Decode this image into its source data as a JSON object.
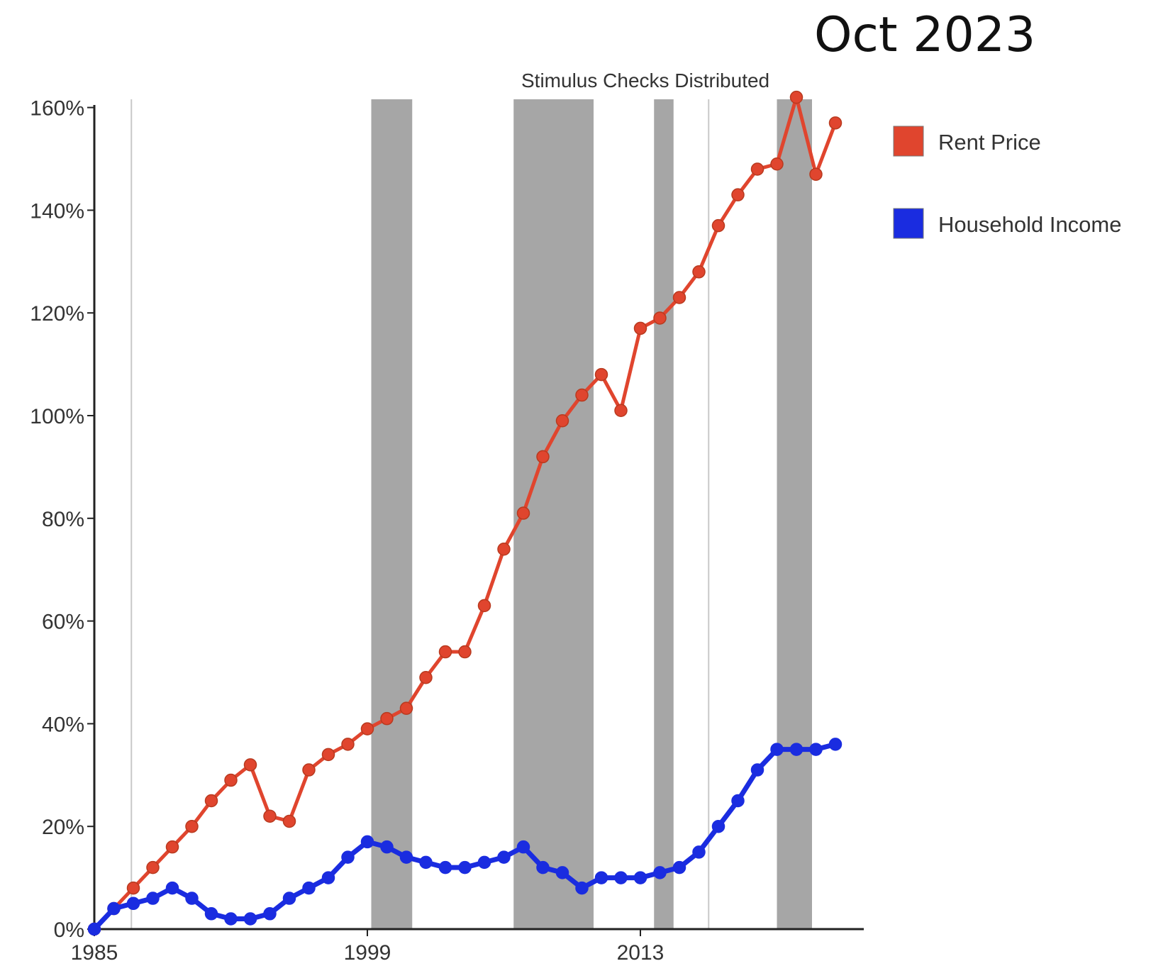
{
  "period_label": "Oct 2023",
  "annotation": "Stimulus Checks Distributed",
  "colors": {
    "rent": "#e0452e",
    "rent_stroke": "#b83a1f",
    "income": "#1a2ce0",
    "shade": "#a6a6a6",
    "thin_line": "#c8c8c8",
    "axis": "#222222"
  },
  "chart_data": {
    "type": "line",
    "title": "",
    "xlabel": "",
    "ylabel": "",
    "x_ticks": [
      "1985",
      "1999",
      "2013"
    ],
    "y_ticks": [
      "0%",
      "20%",
      "40%",
      "60%",
      "80%",
      "100%",
      "120%",
      "140%",
      "160%"
    ],
    "xlim": [
      1985,
      2024.5
    ],
    "ylim": [
      0,
      160
    ],
    "grid": false,
    "legend_position": "right",
    "shaded_periods": [
      [
        1999.2,
        2001.3
      ],
      [
        2006.5,
        2010.6
      ],
      [
        2013.7,
        2014.7
      ],
      [
        2020.0,
        2021.8
      ]
    ],
    "thin_vertical_lines": [
      1986.9,
      2016.5
    ],
    "x": [
      1985,
      1986,
      1987,
      1988,
      1989,
      1990,
      1991,
      1992,
      1993,
      1994,
      1995,
      1996,
      1997,
      1998,
      1999,
      2000,
      2001,
      2002,
      2003,
      2004,
      2005,
      2006,
      2007,
      2008,
      2009,
      2010,
      2011,
      2012,
      2013,
      2014,
      2015,
      2016,
      2017,
      2018,
      2019,
      2020,
      2021,
      2022,
      2023,
      2024
    ],
    "series": [
      {
        "name": "Rent Price",
        "values": [
          0,
          4,
          8,
          12,
          16,
          20,
          25,
          29,
          32,
          22,
          21,
          31,
          34,
          36,
          39,
          41,
          43,
          49,
          54,
          54,
          63,
          74,
          81,
          92,
          99,
          104,
          108,
          101,
          117,
          119,
          123,
          128,
          137,
          143,
          148,
          149,
          162,
          147,
          157,
          null
        ]
      },
      {
        "name": "Household Income",
        "values": [
          0,
          4,
          5,
          6,
          8,
          6,
          3,
          2,
          2,
          3,
          6,
          8,
          10,
          14,
          17,
          16,
          14,
          13,
          12,
          12,
          13,
          14,
          16,
          12,
          11,
          8,
          10,
          10,
          10,
          11,
          12,
          15,
          20,
          25,
          31,
          35,
          35,
          35,
          36,
          null
        ]
      }
    ]
  }
}
